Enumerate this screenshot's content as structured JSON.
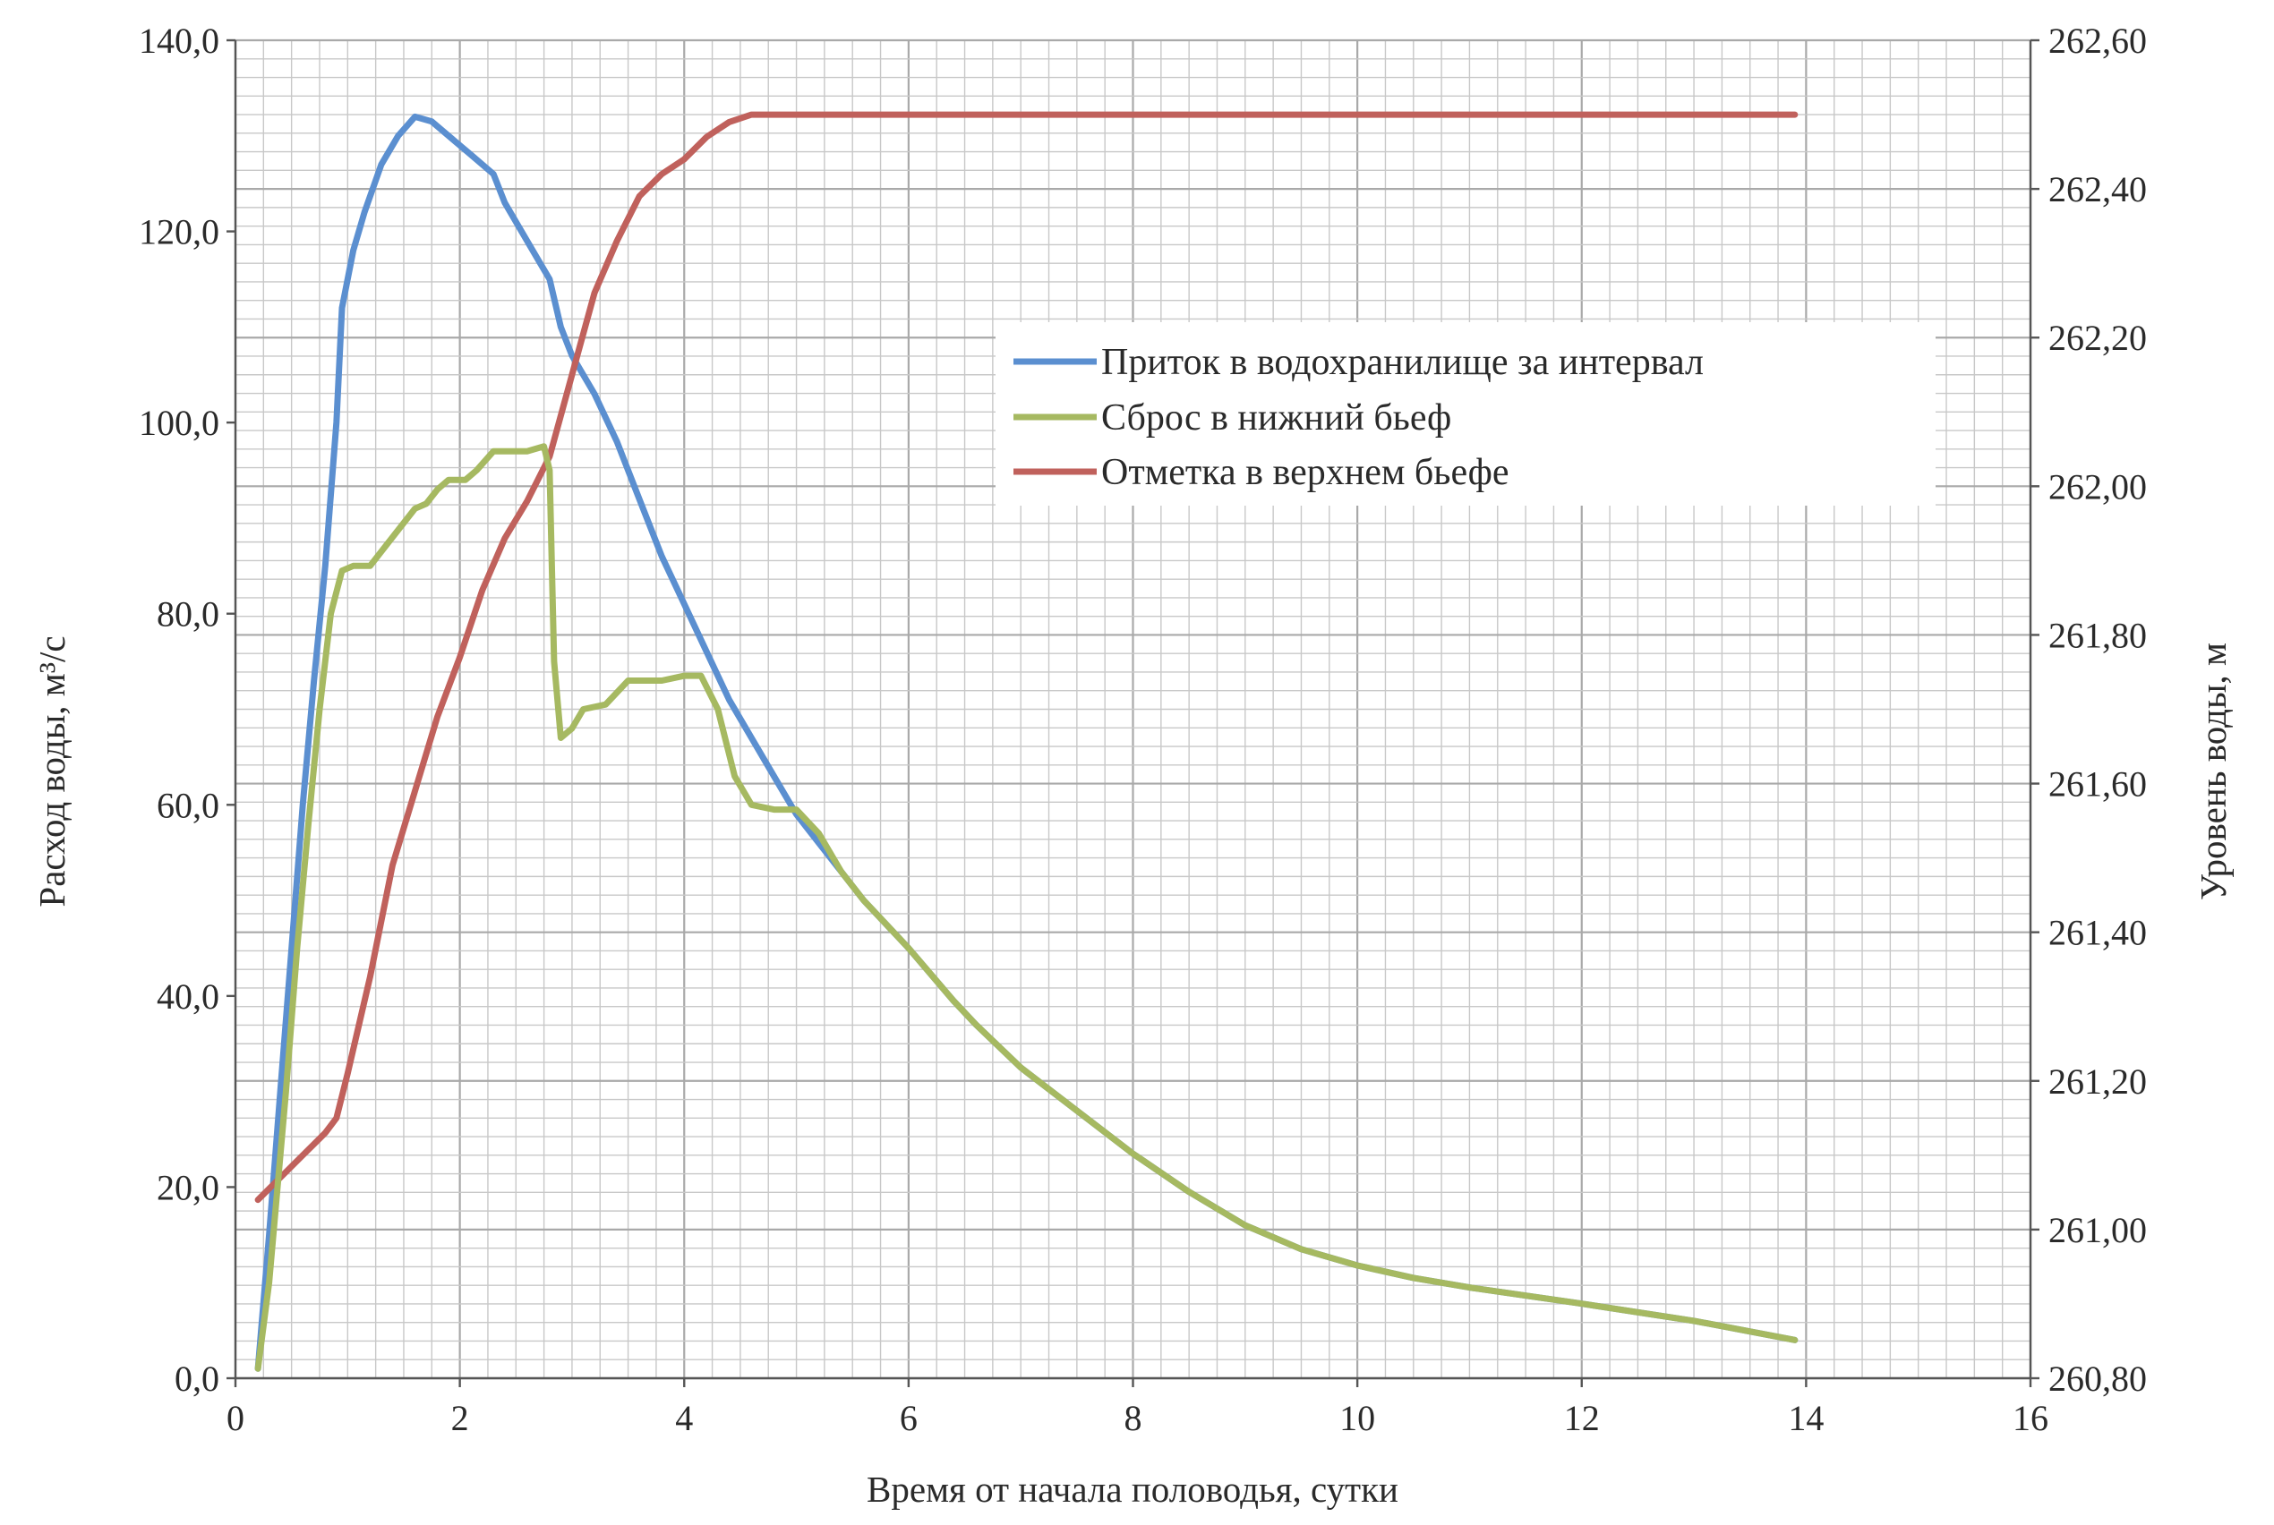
{
  "chart_data": {
    "type": "line",
    "xlabel": "Время от начала половодья, сутки",
    "ylabel_left": "Расход воды, м³/с",
    "ylabel_right": "Уровень воды, м",
    "xlim": [
      0,
      16
    ],
    "ylim_left": [
      0,
      140
    ],
    "ylim_right": [
      260.8,
      262.6
    ],
    "x_ticks": [
      "0",
      "2",
      "4",
      "6",
      "8",
      "10",
      "12",
      "14",
      "16"
    ],
    "y_left_ticks": [
      "0,0",
      "20,0",
      "40,0",
      "60,0",
      "80,0",
      "100,0",
      "120,0",
      "140,0"
    ],
    "y_right_ticks": [
      "260,80",
      "261,00",
      "261,20",
      "261,40",
      "261,60",
      "261,80",
      "262,00",
      "262,20",
      "262,40",
      "262,60"
    ],
    "grid": true,
    "legend_position": "upper-right inside plot",
    "series": [
      {
        "name": "Приток в водохранилище за интервал",
        "axis": "left",
        "color": "#5b8fd0",
        "points": [
          [
            0.2,
            1
          ],
          [
            0.3,
            15
          ],
          [
            0.4,
            30
          ],
          [
            0.5,
            45
          ],
          [
            0.6,
            60
          ],
          [
            0.7,
            73
          ],
          [
            0.8,
            85
          ],
          [
            0.9,
            100
          ],
          [
            0.95,
            112
          ],
          [
            1.05,
            118
          ],
          [
            1.15,
            122
          ],
          [
            1.3,
            127
          ],
          [
            1.45,
            130
          ],
          [
            1.6,
            132
          ],
          [
            1.75,
            131.5
          ],
          [
            1.9,
            130
          ],
          [
            2.1,
            128
          ],
          [
            2.3,
            126
          ],
          [
            2.4,
            123
          ],
          [
            2.5,
            121
          ],
          [
            2.7,
            117
          ],
          [
            2.8,
            115
          ],
          [
            2.9,
            110
          ],
          [
            3.0,
            107
          ],
          [
            3.2,
            103
          ],
          [
            3.4,
            98
          ],
          [
            3.6,
            92
          ],
          [
            3.8,
            86
          ],
          [
            4.0,
            81
          ],
          [
            4.2,
            76
          ],
          [
            4.4,
            71
          ],
          [
            4.6,
            67
          ],
          [
            4.8,
            63
          ],
          [
            5.0,
            59
          ],
          [
            5.2,
            56
          ],
          [
            5.4,
            53
          ],
          [
            5.6,
            50
          ],
          [
            6.0,
            45
          ],
          [
            6.4,
            39.5
          ],
          [
            6.6,
            37
          ],
          [
            7.0,
            32.5
          ],
          [
            7.5,
            28
          ],
          [
            8.0,
            23.5
          ],
          [
            8.5,
            19.5
          ],
          [
            9.0,
            16
          ],
          [
            9.5,
            13.5
          ],
          [
            10.0,
            11.8
          ],
          [
            10.5,
            10.5
          ],
          [
            11.0,
            9.5
          ],
          [
            12.0,
            7.8
          ],
          [
            13.0,
            6
          ],
          [
            13.9,
            4
          ]
        ]
      },
      {
        "name": "Сброс в нижний бьеф",
        "axis": "left",
        "color": "#a6b961",
        "points": [
          [
            0.2,
            1
          ],
          [
            0.3,
            10
          ],
          [
            0.45,
            30
          ],
          [
            0.55,
            45
          ],
          [
            0.65,
            58
          ],
          [
            0.75,
            70
          ],
          [
            0.85,
            80
          ],
          [
            0.95,
            84.5
          ],
          [
            1.05,
            85
          ],
          [
            1.2,
            85
          ],
          [
            1.4,
            88
          ],
          [
            1.6,
            91
          ],
          [
            1.7,
            91.5
          ],
          [
            1.8,
            93
          ],
          [
            1.9,
            94
          ],
          [
            2.05,
            94
          ],
          [
            2.15,
            95
          ],
          [
            2.3,
            97
          ],
          [
            2.45,
            97
          ],
          [
            2.6,
            97
          ],
          [
            2.75,
            97.5
          ],
          [
            2.8,
            95
          ],
          [
            2.84,
            75
          ],
          [
            2.9,
            67
          ],
          [
            3.0,
            68
          ],
          [
            3.1,
            70
          ],
          [
            3.3,
            70.5
          ],
          [
            3.5,
            73
          ],
          [
            3.8,
            73
          ],
          [
            4.0,
            73.5
          ],
          [
            4.15,
            73.5
          ],
          [
            4.3,
            70
          ],
          [
            4.45,
            63
          ],
          [
            4.6,
            60
          ],
          [
            4.8,
            59.5
          ],
          [
            5.0,
            59.5
          ],
          [
            5.2,
            57
          ],
          [
            5.4,
            53
          ],
          [
            5.6,
            50
          ],
          [
            6.0,
            45
          ],
          [
            6.4,
            39.5
          ],
          [
            6.6,
            37
          ],
          [
            7.0,
            32.5
          ],
          [
            7.5,
            28
          ],
          [
            8.0,
            23.5
          ],
          [
            8.5,
            19.5
          ],
          [
            9.0,
            16
          ],
          [
            9.5,
            13.5
          ],
          [
            10.0,
            11.8
          ],
          [
            10.5,
            10.5
          ],
          [
            11.0,
            9.5
          ],
          [
            12.0,
            7.8
          ],
          [
            13.0,
            6
          ],
          [
            13.9,
            4
          ]
        ]
      },
      {
        "name": "Отметка в верхнем бьефе",
        "axis": "right",
        "color": "#c0615c",
        "points": [
          [
            0.2,
            261.04
          ],
          [
            0.4,
            261.07
          ],
          [
            0.6,
            261.1
          ],
          [
            0.8,
            261.13
          ],
          [
            0.9,
            261.15
          ],
          [
            1.0,
            261.21
          ],
          [
            1.2,
            261.34
          ],
          [
            1.4,
            261.49
          ],
          [
            1.6,
            261.59
          ],
          [
            1.8,
            261.69
          ],
          [
            2.0,
            261.77
          ],
          [
            2.2,
            261.86
          ],
          [
            2.4,
            261.93
          ],
          [
            2.6,
            261.98
          ],
          [
            2.8,
            262.04
          ],
          [
            3.0,
            262.15
          ],
          [
            3.2,
            262.26
          ],
          [
            3.4,
            262.33
          ],
          [
            3.6,
            262.39
          ],
          [
            3.8,
            262.42
          ],
          [
            4.0,
            262.44
          ],
          [
            4.2,
            262.47
          ],
          [
            4.4,
            262.49
          ],
          [
            4.6,
            262.5
          ],
          [
            5.0,
            262.5
          ],
          [
            8.0,
            262.5
          ],
          [
            12.0,
            262.5
          ],
          [
            13.9,
            262.5
          ]
        ]
      }
    ]
  }
}
